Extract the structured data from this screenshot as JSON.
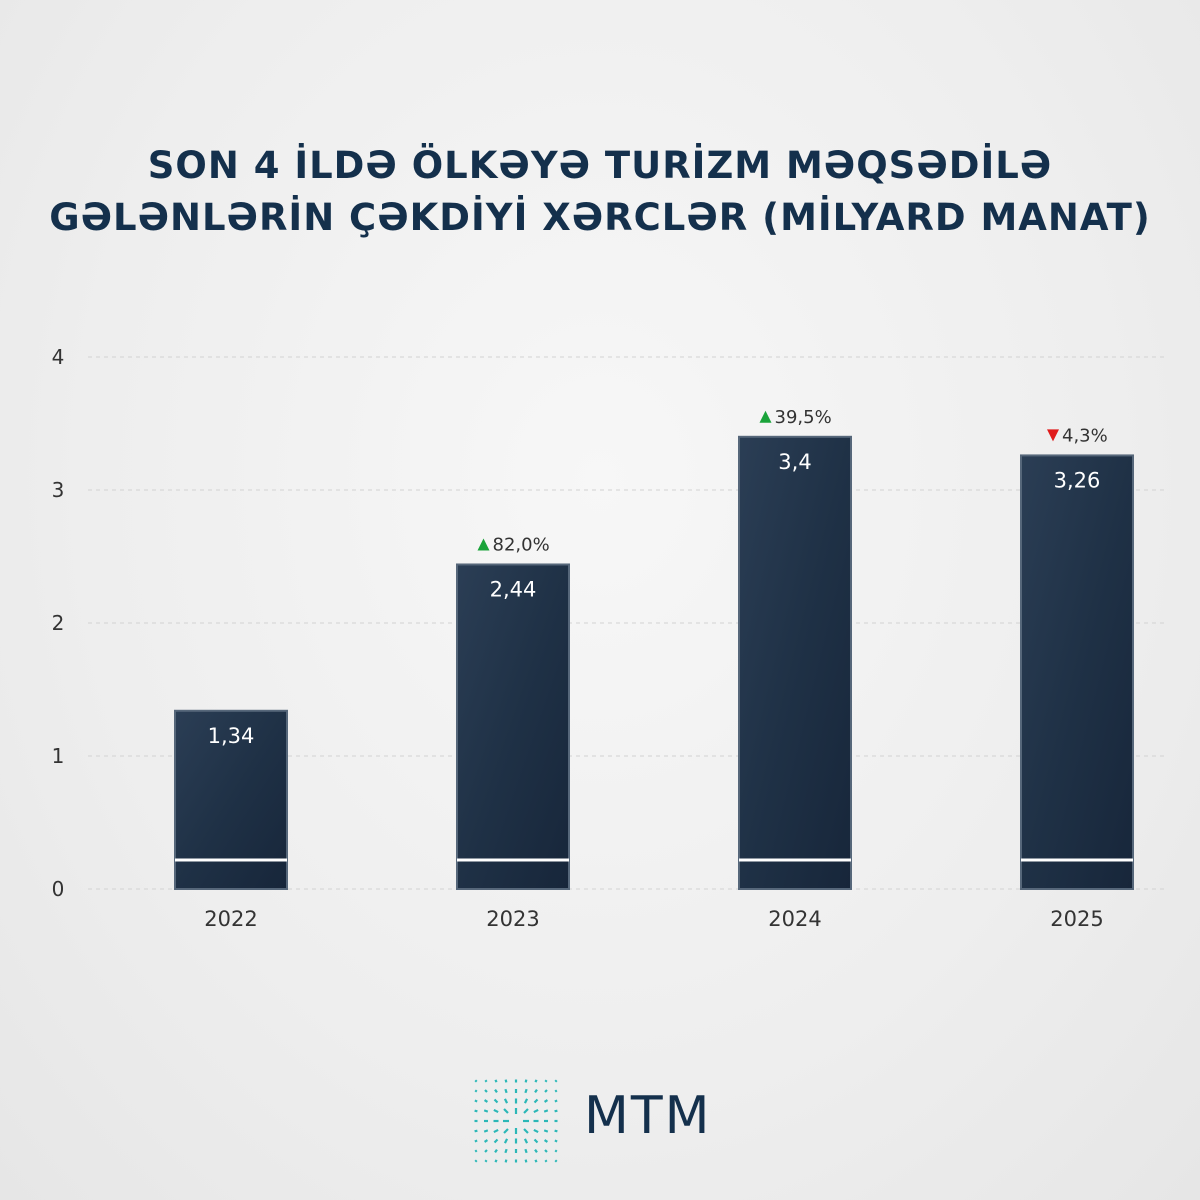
{
  "title": {
    "line1": "SON 4 İLDƏ ÖLKƏYƏ TURİZM MƏQSƏDİLƏ",
    "line2": "GƏLƏNLƏRİN ÇƏKDİYİ XƏRCLƏR (MİLYARD MANAT)"
  },
  "chart_data": {
    "type": "bar",
    "categories": [
      "2022",
      "2023",
      "2024",
      "2025"
    ],
    "values": [
      1.34,
      2.44,
      3.4,
      3.26
    ],
    "value_labels": [
      "1,34",
      "2,44",
      "3,4",
      "3,26"
    ],
    "changes": [
      null,
      {
        "direction": "up",
        "label": "82,0%"
      },
      {
        "direction": "up",
        "label": "39,5%"
      },
      {
        "direction": "down",
        "label": "4,3%"
      }
    ],
    "y_ticks": [
      "0",
      "1",
      "2",
      "3",
      "4"
    ],
    "ylim": [
      0,
      4
    ],
    "grid": true,
    "colors": {
      "bar": "#1f3146",
      "up": "#1aa33a",
      "down": "#e01b1b"
    }
  },
  "logo": {
    "text": "MTM",
    "icon": "mtm-logo-icon",
    "color": "#14304c",
    "accent": "#2bb7b7"
  }
}
